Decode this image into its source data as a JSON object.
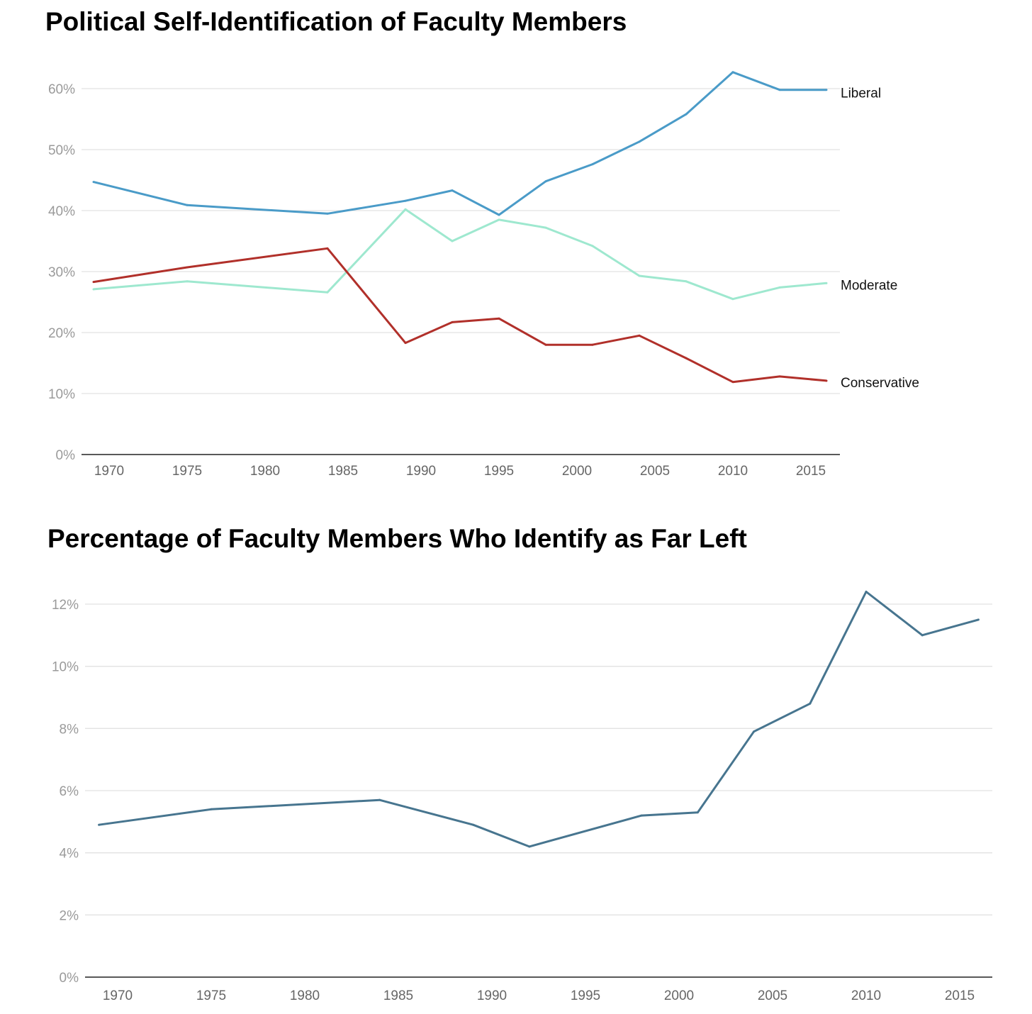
{
  "chart_data": [
    {
      "type": "line",
      "title": "Political Self-Identification of Faculty Members",
      "xlabel": "",
      "ylabel": "",
      "x": [
        1969,
        1975,
        1984,
        1989,
        1992,
        1995,
        1998,
        2001,
        2004,
        2007,
        2010,
        2013,
        2016
      ],
      "xticks": [
        1970,
        1975,
        1980,
        1985,
        1990,
        1995,
        2000,
        2005,
        2010,
        2015
      ],
      "yticks": [
        0,
        10,
        20,
        30,
        40,
        50,
        60
      ],
      "ytick_labels": [
        "0%",
        "10%",
        "20%",
        "30%",
        "40%",
        "50%",
        "60%"
      ],
      "xlim": [
        1969,
        2017
      ],
      "ylim": [
        0,
        60
      ],
      "grid": true,
      "legend": "direct labels at right end of lines",
      "series": [
        {
          "name": "Liberal",
          "color": "#4a9bc8",
          "values": [
            44.7,
            40.9,
            39.5,
            41.6,
            43.3,
            39.3,
            44.8,
            47.6,
            51.3,
            55.8,
            62.7,
            59.8,
            59.8
          ]
        },
        {
          "name": "Moderate",
          "color": "#9ee8cf",
          "values": [
            27.1,
            28.4,
            26.6,
            40.2,
            35.0,
            38.5,
            37.2,
            34.2,
            29.3,
            28.4,
            25.5,
            27.4,
            28.1
          ]
        },
        {
          "name": "Conservative",
          "color": "#b1302a",
          "values": [
            28.3,
            30.7,
            33.8,
            18.3,
            21.7,
            22.3,
            18.0,
            18.0,
            19.5,
            15.8,
            11.9,
            12.8,
            12.1
          ]
        }
      ]
    },
    {
      "type": "line",
      "title": "Percentage of Faculty Members Who Identify as Far Left",
      "xlabel": "",
      "ylabel": "",
      "x": [
        1969,
        1975,
        1984,
        1989,
        1992,
        1998,
        2001,
        2004,
        2007,
        2010,
        2013,
        2016
      ],
      "xticks": [
        1970,
        1975,
        1980,
        1985,
        1990,
        1995,
        2000,
        2005,
        2010,
        2015
      ],
      "yticks": [
        0,
        2,
        4,
        6,
        8,
        10,
        12
      ],
      "ytick_labels": [
        "0%",
        "2%",
        "4%",
        "6%",
        "8%",
        "10%",
        "12%"
      ],
      "xlim": [
        1969,
        2017
      ],
      "ylim": [
        0,
        12
      ],
      "grid": true,
      "series": [
        {
          "name": "Far Left",
          "color": "#47758f",
          "values": [
            4.9,
            5.4,
            5.7,
            4.9,
            4.2,
            5.2,
            5.3,
            7.9,
            8.8,
            12.4,
            11.0,
            11.5
          ]
        }
      ]
    }
  ]
}
